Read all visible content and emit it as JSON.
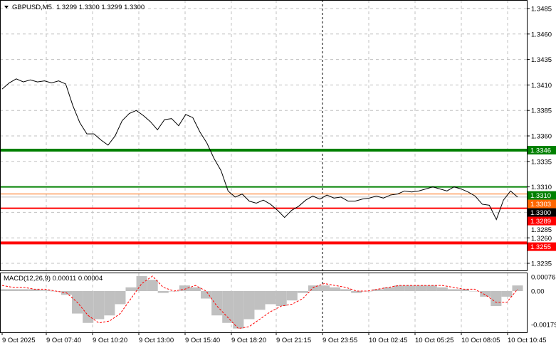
{
  "header": {
    "symbol_label": "GBPUSD,M5",
    "ohlc": "1.3299 1.3300 1.3299 1.3300",
    "menu_icon": "triangle-down-icon"
  },
  "chart_data": [
    {
      "type": "line",
      "title": "GBPUSD,M5",
      "ylim": [
        1.3225,
        1.3495
      ],
      "y_ticks": [
        "1.3485",
        "1.3460",
        "1.3435",
        "1.3410",
        "1.3385",
        "1.3360",
        "1.3335",
        "1.3310",
        "1.3285",
        "1.3260",
        "1.3235"
      ],
      "x_ticks": [
        "9 Oct 2025",
        "9 Oct 07:40",
        "9 Oct 10:20",
        "9 Oct 13:00",
        "9 Oct 15:40",
        "9 Oct 18:20",
        "9 Oct 21:15",
        "9 Oct 23:55",
        "10 Oct 02:45",
        "10 Oct 05:25",
        "10 Oct 08:05",
        "10 Oct 10:45"
      ],
      "price": [
        1.3406,
        1.3412,
        1.3416,
        1.3413,
        1.3415,
        1.3413,
        1.3414,
        1.3412,
        1.3414,
        1.3411,
        1.339,
        1.3373,
        1.3362,
        1.3362,
        1.3356,
        1.3351,
        1.336,
        1.3375,
        1.3382,
        1.3385,
        1.338,
        1.3374,
        1.3366,
        1.3376,
        1.3377,
        1.337,
        1.3381,
        1.3378,
        1.3364,
        1.3353,
        1.3338,
        1.3326,
        1.3306,
        1.33,
        1.3303,
        1.3296,
        1.3294,
        1.3297,
        1.3293,
        1.3287,
        1.328,
        1.3287,
        1.3291,
        1.3297,
        1.3301,
        1.3298,
        1.3302,
        1.3299,
        1.33,
        1.3296,
        1.3296,
        1.3298,
        1.3299,
        1.3301,
        1.3299,
        1.3302,
        1.3303,
        1.3306,
        1.3305,
        1.3306,
        1.3308,
        1.331,
        1.3308,
        1.3306,
        1.331,
        1.3308,
        1.3305,
        1.3301,
        1.3293,
        1.3292,
        1.3278,
        1.3297,
        1.3306,
        1.33
      ],
      "levels": [
        {
          "value": 1.3346,
          "label": "1.3346",
          "color": "#008000",
          "weight": "thick"
        },
        {
          "value": 1.331,
          "label": "1.3310",
          "color": "#008000",
          "weight": "normal"
        },
        {
          "value": 1.3303,
          "label": "1.3303",
          "color": "#ff6600",
          "weight": "thin"
        },
        {
          "value": 1.33,
          "label": "1.3300",
          "color": "#000000",
          "weight": "thin"
        },
        {
          "value": 1.3289,
          "label": "1.3289",
          "color": "#ff0000",
          "weight": "normal"
        },
        {
          "value": 1.3255,
          "label": "1.3255",
          "color": "#ff0000",
          "weight": "thick"
        }
      ],
      "grid": true,
      "current_time_marker": "9 Oct 23:55"
    },
    {
      "type": "bar",
      "title": "MACD(12,26,9) 0.00011 0.00004",
      "ylim": [
        -0.00195,
        0.00095
      ],
      "y_ticks": [
        "0.00076",
        "0.00",
        "-0.00179"
      ],
      "histogram": [
        0.0001,
        0.0001,
        0.0001,
        0.0001,
        5e-05,
        0,
        -0.0002,
        -0.0012,
        -0.0017,
        -0.0015,
        -0.0013,
        -0.0007,
        0.0002,
        0.0008,
        0.0006,
        -0.0001,
        0,
        0.0003,
        0.0002,
        -0.0004,
        -0.0013,
        -0.0017,
        -0.002,
        -0.0015,
        -0.001,
        -0.0007,
        -0.0008,
        -0.0005,
        -0.0001,
        0.0003,
        0.0003,
        0.0002,
        0.0001,
        -0.0001,
        0,
        0.0001,
        0.0002,
        0.0003,
        0.0003,
        0.0003,
        0.0003,
        0.0002,
        0.0001,
        0.0001,
        0,
        -0.0003,
        -0.0008,
        -0.0003,
        0.0003
      ],
      "signal": [
        0.0003,
        0.0002,
        0.0002,
        0.0001,
        0.0001,
        0,
        -0.0001,
        -0.0006,
        -0.0013,
        -0.0017,
        -0.0016,
        -0.0012,
        -0.0004,
        0.0004,
        0.0008,
        0.0002,
        0,
        0.0001,
        0.0003,
        0,
        -0.0008,
        -0.0014,
        -0.002,
        -0.0019,
        -0.0015,
        -0.0011,
        -0.0008,
        -0.0007,
        -0.0004,
        0.0002,
        0.0004,
        0.0003,
        0.0002,
        0,
        0,
        0.0001,
        0.0002,
        0.0003,
        0.0003,
        0.0003,
        0.0003,
        0.0003,
        0.0002,
        0.0001,
        0.0001,
        -0.0002,
        -0.0006,
        -0.0006,
        0.0001
      ],
      "colors": {
        "histogram": "#c0c0c0",
        "signal": "#ff0000"
      }
    }
  ]
}
